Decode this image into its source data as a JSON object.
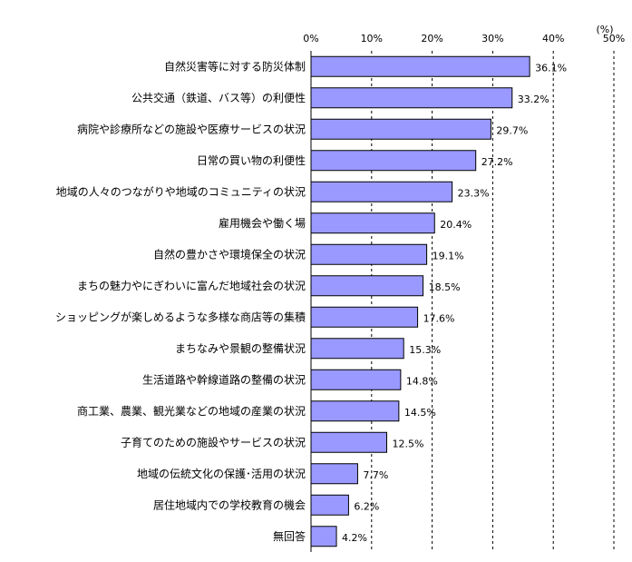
{
  "chart_data": {
    "type": "bar",
    "orientation": "horizontal",
    "unit_label": "(%)",
    "xlim": [
      0,
      50
    ],
    "x_ticks": [
      0,
      10,
      20,
      30,
      40,
      50
    ],
    "x_tick_labels": [
      "0%",
      "10%",
      "20%",
      "30%",
      "40%",
      "50%"
    ],
    "grid": "vertical dashed",
    "bar_color": "#9999ff",
    "categories": [
      "自然災害等に対する防災体制",
      "公共交通（鉄道、バス等）の利便性",
      "病院や診療所などの施設や医療サービスの状況",
      "日常の買い物の利便性",
      "地域の人々のつながりや地域のコミュニティの状況",
      "雇用機会や働く場",
      "自然の豊かさや環境保全の状況",
      "まちの魅力やにぎわいに富んだ地域社会の状況",
      "ショッピングが楽しめるような多様な商店等の集積",
      "まちなみや景観の整備状況",
      "生活道路や幹線道路の整備の状況",
      "商工業、農業、観光業などの地域の産業の状況",
      "子育てのための施設やサービスの状況",
      "地域の伝統文化の保護･活用の状況",
      "居住地域内での学校教育の機会",
      "無回答"
    ],
    "values": [
      36.1,
      33.2,
      29.7,
      27.2,
      23.3,
      20.4,
      19.1,
      18.5,
      17.6,
      15.3,
      14.8,
      14.5,
      12.5,
      7.7,
      6.2,
      4.2
    ],
    "value_labels": [
      "36.1%",
      "33.2%",
      "29.7%",
      "27.2%",
      "23.3%",
      "20.4%",
      "19.1%",
      "18.5%",
      "17.6%",
      "15.3%",
      "14.8%",
      "14.5%",
      "12.5%",
      "7.7%",
      "6.2%",
      "4.2%"
    ]
  }
}
